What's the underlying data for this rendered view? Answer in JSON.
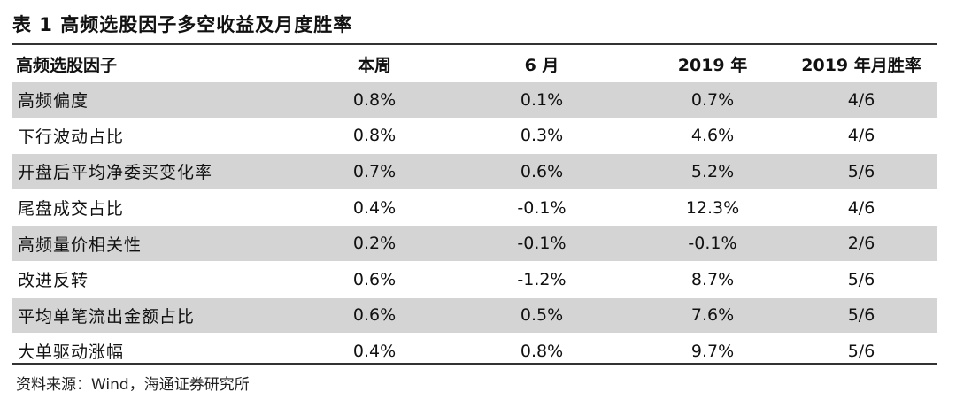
{
  "title": "表 1  高频选股因子多空收益及月度胜率",
  "columns": [
    "高频选股因子",
    "本周",
    "6 月",
    "2019 年",
    "2019 年月胜率"
  ],
  "rows": [
    [
      "高频偏度",
      "0.8%",
      "0.1%",
      "0.7%",
      "4/6"
    ],
    [
      "下行波动占比",
      "0.8%",
      "0.3%",
      "4.6%",
      "4/6"
    ],
    [
      "开盘后平均净委买变化率",
      "0.7%",
      "0.6%",
      "5.2%",
      "5/6"
    ],
    [
      "尾盘成交占比",
      "0.4%",
      "-0.1%",
      "12.3%",
      "4/6"
    ],
    [
      "高频量价相关性",
      "0.2%",
      "-0.1%",
      "-0.1%",
      "2/6"
    ],
    [
      "改进反转",
      "0.6%",
      "-1.2%",
      "8.7%",
      "5/6"
    ],
    [
      "平均单笔流出金额占比",
      "0.6%",
      "0.5%",
      "7.6%",
      "5/6"
    ],
    [
      "大单驱动涨幅",
      "0.4%",
      "0.8%",
      "9.7%",
      "5/6"
    ]
  ],
  "footnote": "资料来源：Wind，海通证券研究所",
  "colors": {
    "shade": "#d4d4d4",
    "rule": "#333333"
  }
}
